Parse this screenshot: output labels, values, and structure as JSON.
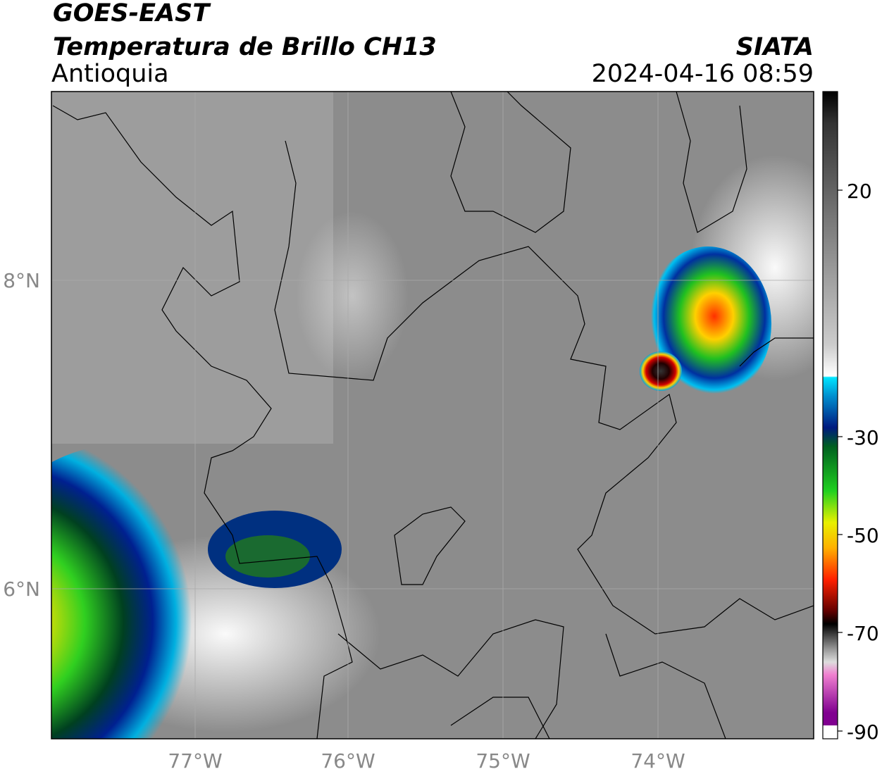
{
  "header": {
    "title": "GOES-EAST",
    "subtitle": "Temperatura de Brillo CH13",
    "region": "Antioquia",
    "source": "SIATA",
    "datetime": "2024-04-16 08:59"
  },
  "map": {
    "xticks": [
      "77°W",
      "76°W",
      "75°W",
      "74°W"
    ],
    "yticks": [
      "8°N",
      "6°N"
    ]
  },
  "colorbar": {
    "ticks": [
      "20",
      "-30",
      "-50",
      "-70",
      "-90"
    ]
  }
}
